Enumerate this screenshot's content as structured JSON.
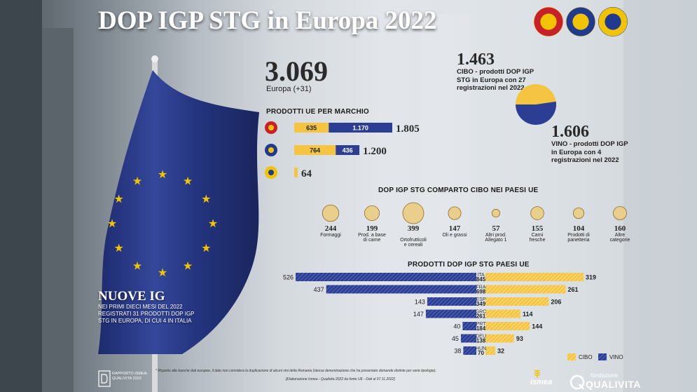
{
  "header": {
    "title": "DOP IGP STG in Europa 2022"
  },
  "seals": [
    {
      "name": "dop-seal",
      "outer": "#c8202a",
      "inner": "#f2c300"
    },
    {
      "name": "igp-seal",
      "outer": "#1f3a8f",
      "inner": "#f2c300"
    },
    {
      "name": "stg-seal",
      "outer": "#f2c300",
      "inner": "#1f3a8f"
    }
  ],
  "colors": {
    "cibo": "#f5c542",
    "vino": "#2c3e94",
    "dot": "#e9cf8b"
  },
  "totals": {
    "europa_value": "3.069",
    "europa_label": "Europa (+31)",
    "cibo_value": "1.463",
    "cibo_label": "CIBO - prodotti DOP IGP STG in Europa con 27 registrazioni nel 2022",
    "vino_value": "1.606",
    "vino_label": "VINO - prodotti DOP IGP in Europa con 4 registrazioni nel 2022"
  },
  "sections": {
    "marchio": "PRODOTTI UE PER MARCHIO",
    "comparto": "DOP IGP STG COMPARTO CIBO NEI PAESI UE",
    "paesi": "PRODOTTI DOP IGP STG PAESI UE"
  },
  "nuove": {
    "title": "NUOVE IG",
    "text": "NEI PRIMI DIECI MESI DEL 2022 REGISTRATI 31 PRODOTTI DOP IGP STG IN EUROPA, DI CUI 4 IN ITALIA"
  },
  "footer": {
    "note1": "* Rispetto alle banche dati europee, il dato non considera la duplicazione di alcuni vini della Romania (stessa denominazione che ha presentato domande distinte per varie tipologie).",
    "note2": "[Elaborazione Ismea - Qualivita 2022 da fonte UE - Dati al 07.11.2022]",
    "rapporto": "RAPPORTO ISMEA-QUALIVITA 2022",
    "ismea": "ismea",
    "qualivita_small": "fondazione",
    "qualivita": "QUALIVITA"
  },
  "chart_data": [
    {
      "type": "bar",
      "title": "PRODOTTI UE PER MARCHIO",
      "categories": [
        "DOP",
        "IGP",
        "STG"
      ],
      "series": [
        {
          "name": "CIBO",
          "values": [
            635,
            764,
            64
          ]
        },
        {
          "name": "VINO",
          "values": [
            1170,
            436,
            0
          ]
        }
      ],
      "labels": {
        "cibo": [
          "635",
          "764",
          ""
        ],
        "vino": [
          "1.170",
          "436",
          ""
        ]
      },
      "totals": [
        "1.805",
        "1.200",
        "64"
      ]
    },
    {
      "type": "pie",
      "title": "CIBO / VINO",
      "slices": [
        {
          "name": "CIBO",
          "value": 1463
        },
        {
          "name": "VINO",
          "value": 1606
        }
      ]
    },
    {
      "type": "scatter",
      "title": "DOP IGP STG COMPARTO CIBO NEI PAESI UE",
      "items": [
        {
          "value": 244,
          "label": "Formaggi"
        },
        {
          "value": 199,
          "label": "Prod. a base di carne"
        },
        {
          "value": 399,
          "label": "Ortofrutticoli e cereali"
        },
        {
          "value": 147,
          "label": "Oli e grassi"
        },
        {
          "value": 57,
          "label": "Altri prod. Allegato 1"
        },
        {
          "value": 155,
          "label": "Carni fresche"
        },
        {
          "value": 104,
          "label": "Prodotti di panetteria"
        },
        {
          "value": 160,
          "label": "Altre categorie"
        }
      ]
    },
    {
      "type": "bar",
      "title": "PRODOTTI DOP IGP STG PAESI UE",
      "categories": [
        "ITA",
        "FRA",
        "ESP",
        "GRC",
        "PRT",
        "DEU",
        "HUN"
      ],
      "totals": [
        "845",
        "698",
        "349",
        "261",
        "184",
        "138",
        "70"
      ],
      "series": [
        {
          "name": "VINO",
          "values": [
            526,
            437,
            143,
            147,
            40,
            45,
            38
          ]
        },
        {
          "name": "CIBO",
          "values": [
            319,
            261,
            206,
            114,
            144,
            93,
            32
          ]
        }
      ],
      "legend": [
        "CIBO",
        "VINO"
      ],
      "xlim": [
        0,
        526
      ]
    }
  ]
}
